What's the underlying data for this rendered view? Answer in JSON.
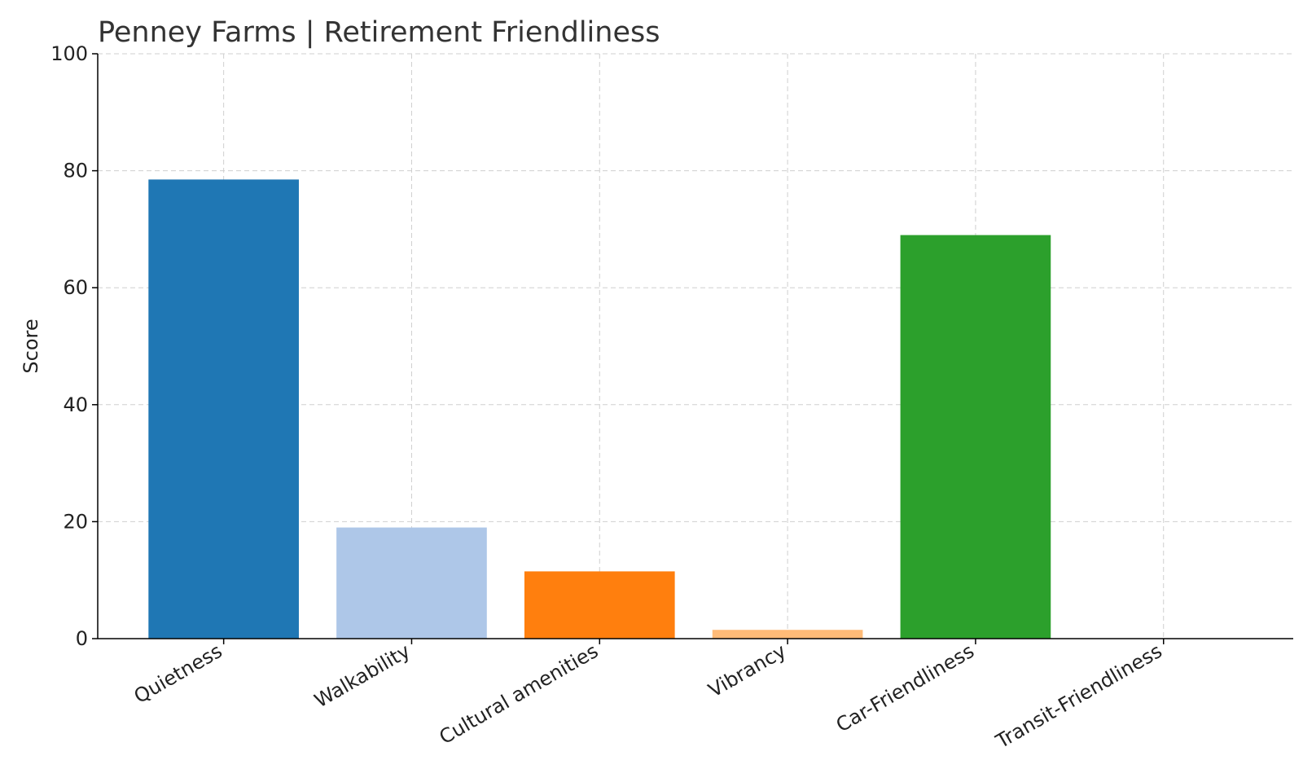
{
  "chart_data": {
    "type": "bar",
    "title": "Penney Farms | Retirement Friendliness",
    "xlabel": "",
    "ylabel": "Score",
    "ylim": [
      0,
      100
    ],
    "yticks": [
      0,
      20,
      40,
      60,
      80,
      100
    ],
    "grid": true,
    "categories": [
      "Quietness",
      "Walkability",
      "Cultural amenities",
      "Vibrancy",
      "Car-Friendliness",
      "Transit-Friendliness"
    ],
    "values": [
      78.5,
      19,
      11.5,
      1.5,
      69,
      0
    ],
    "colors": [
      "#1f77b4",
      "#aec7e8",
      "#ff7f0e",
      "#ffbb78",
      "#2ca02c",
      "#98df8a"
    ]
  }
}
